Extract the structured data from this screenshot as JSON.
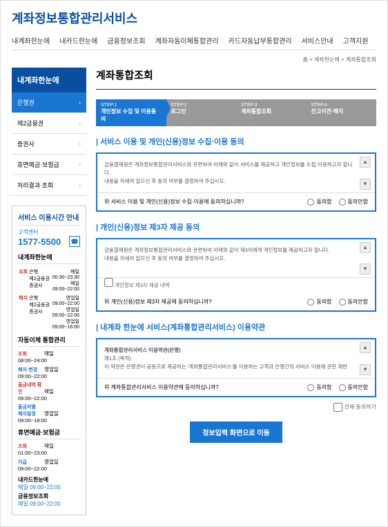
{
  "logo": "계좌정보통합관리서비스",
  "topnav": [
    "내계좌한눈에",
    "내카드한눈에",
    "금융정보조회",
    "계좌자동이체통합관리",
    "카드자동납부통합관리",
    "서비스안내",
    "고객지원"
  ],
  "breadcrumb": "홈 > 계좌한눈에 > 계좌통합조회",
  "sidebar": {
    "title": "내계좌한눈에",
    "items": [
      "은행권",
      "제2금융권",
      "증권사",
      "휴면예금·보험금",
      "처리결과 조회"
    ]
  },
  "info": {
    "title": "서비스 이용시간 안내",
    "center_label": "고객센터",
    "phone": "1577-5500",
    "s1_title": "내계좌한눈에",
    "s1_rows": [
      {
        "tag": "조회",
        "c1": "은행",
        "t1": "매일\n00:30~23:30",
        "c2": "제2금융권",
        "t2": "매일\n09:00~22:00",
        "c3": "증권사",
        "t3": ""
      },
      {
        "tag": "해지",
        "c1": "은행",
        "t1": "영업일\n09:00~22:00",
        "c2": "제2금융권",
        "t2": "영업일\n09:00~22:00",
        "c3": "증권사",
        "t3": "영업일\n09:00~16:00"
      }
    ],
    "s2_title": "자동이체 통합관리",
    "s2_rows": [
      {
        "lbl": "조회",
        "val": "매일 08:00~24:00"
      },
      {
        "lbl": "해지·변경",
        "val": "영업일 09:00~22:00"
      },
      {
        "lbl": "출금내역 확인",
        "val": "매일 09:00~22:00"
      },
      {
        "lbl": "출금처별\n해지일정",
        "val": "영업일 09:00~18:00"
      }
    ],
    "s3_title": "휴면예금·보험금",
    "s3_rows": [
      {
        "lbl": "조회",
        "val": "매일 01:00~23:00",
        "cls": "tag"
      },
      {
        "lbl": "지급",
        "val": "영업일 09:00~22:00",
        "cls": "tag blue"
      }
    ],
    "s4_title": "내카드한눈에",
    "s4_time": "매일 09:00~22:00",
    "s5_title": "금융정보조회",
    "s5_time": "매일 09:00~22:00"
  },
  "page_title": "계좌통합조회",
  "steps": [
    {
      "n": "STEP.1",
      "t": "개인정보 수집 및 이용동의"
    },
    {
      "n": "STEP.2",
      "t": "로그인"
    },
    {
      "n": "STEP.3",
      "t": "계좌통합조회"
    },
    {
      "n": "STEP.4",
      "t": "잔고이전·해지"
    }
  ],
  "sections": [
    {
      "title": "서비스 이용 및 개인(신용)정보 수집·이용 동의",
      "body": "금융결제원은 계좌정보통합관리서비스와 관련하여 아래와 같이 서비스를 제공하고 개인정보를 수집·이용하고자 합니다.\n내용을 자세히 읽으신 후 동의 여부를 결정하여 주십시오.",
      "q": "위 서비스 이용 및 개인(신용)정보 수집·이용에 동의하십니까?"
    },
    {
      "title": "개인(신용)정보 제3자 제공 동의",
      "body": "금융결제원은 계좌정보통합관리서비스와 관련하여 아래와 같이 제3자에게 개인정보를 제공하고자 합니다.\n내용을 자세히 읽으신 후 동의 여부를 결정하여 주십시오.",
      "sub": "개인정보 제3자 제공 내역",
      "q": "위 개인(신용)정보 제3자 제공에 동의하십니까?"
    },
    {
      "title": "내계좌 한눈에 서비스(계좌통합관리서비스) 이용약관",
      "body_title": "계좌통합관리서비스 이용약관(은행)",
      "body": "제1조 (목적)\n이 약관은 은행권이 공동으로 제공하는 '계좌통합관리서비스'를 이용하는 고객과 은행간의 서비스 이용에 관한 제반",
      "q": "위 계좌통합관리서비스 이용약관에 동의하십니까?"
    }
  ],
  "opt_agree": "동의함",
  "opt_disagree": "동의안함",
  "all_agree": "전체 동의하기",
  "submit": "정보입력 화면으로 이동"
}
